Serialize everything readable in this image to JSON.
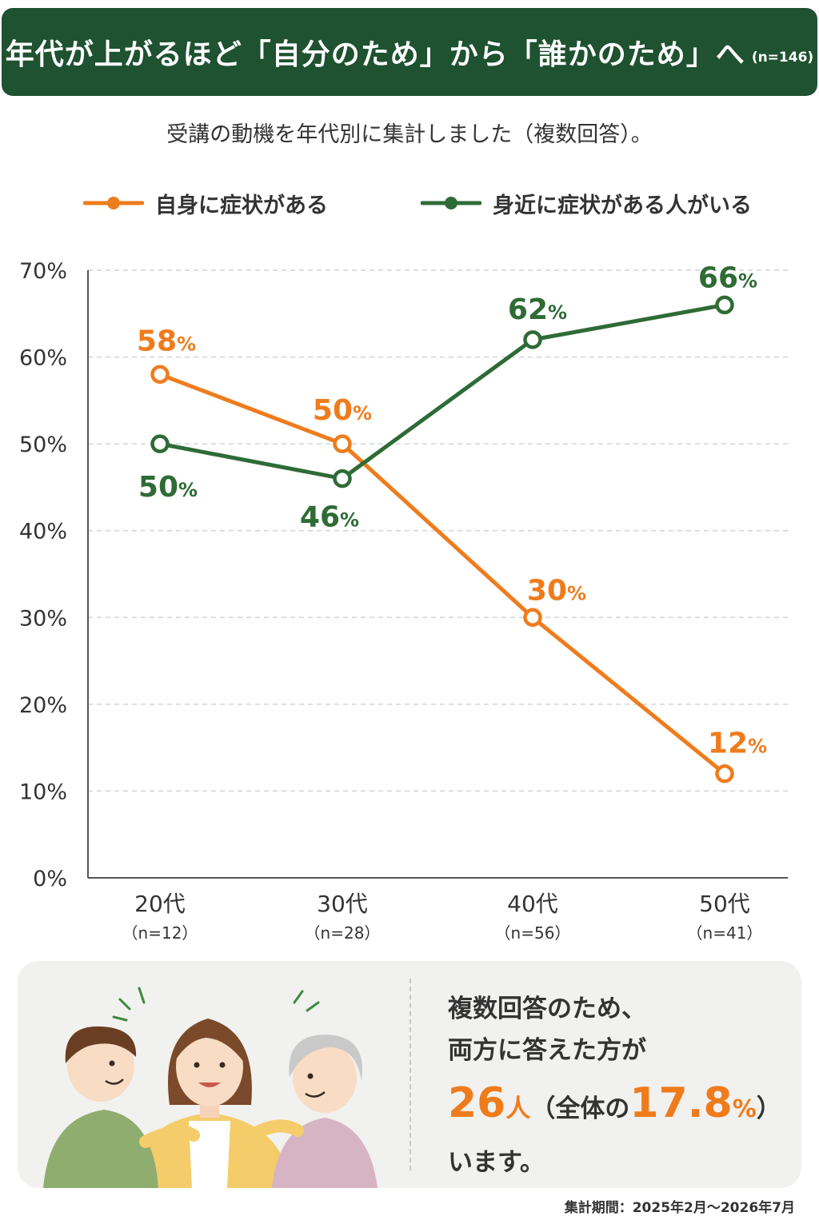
{
  "header": {
    "title": "年代が上がるほど「自分のため」から「誰かのため」へ",
    "sample": "(n=146)"
  },
  "subtitle": "受講の動機を年代別に集計しました（複数回答）。",
  "colors": {
    "orange": "#ef7c1c",
    "green": "#2e6b35",
    "header_bg": "#1f5230"
  },
  "chart_data": {
    "type": "line",
    "categories": [
      "20代",
      "30代",
      "40代",
      "50代"
    ],
    "category_sublabels": [
      "（n=12）",
      "（n=28）",
      "（n=56）",
      "（n=41）"
    ],
    "series": [
      {
        "name": "自身に症状がある",
        "color": "#ef7c1c",
        "values": [
          58,
          50,
          30,
          12
        ],
        "labels": [
          "58",
          "50",
          "30",
          "12"
        ]
      },
      {
        "name": "身近に症状がある人がいる",
        "color": "#2e6b35",
        "values": [
          50,
          46,
          62,
          66
        ],
        "labels": [
          "50",
          "46",
          "62",
          "66"
        ]
      }
    ],
    "value_suffix": "%",
    "ylim": [
      0,
      70
    ],
    "yticks": [
      "0%",
      "10%",
      "20%",
      "30%",
      "40%",
      "50%",
      "60%",
      "70%"
    ],
    "grid": true,
    "legend": "top"
  },
  "info": {
    "line1": "複数回答のため、",
    "line2": "両方に答えた方が",
    "count": "26",
    "count_unit": "人",
    "paren_open": "（全体の",
    "percent": "17.8",
    "percent_unit": "%",
    "paren_close": "）",
    "line4": "います。"
  },
  "footnote": "集計期間：2025年2月～2026年7月"
}
